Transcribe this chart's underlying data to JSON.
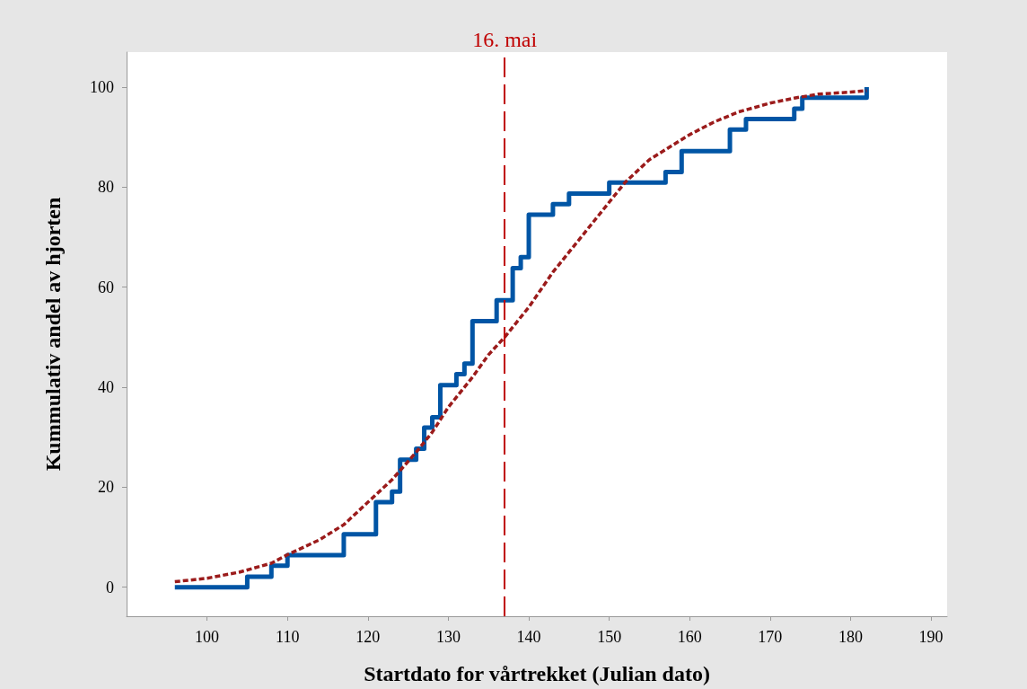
{
  "chart_data": {
    "type": "step",
    "xlabel": "Startdato for vårtrekket (Julian dato)",
    "ylabel": "Kummulativ andel av hjorten",
    "xlim": [
      90,
      192
    ],
    "xticks": [
      100,
      110,
      120,
      130,
      140,
      150,
      160,
      170,
      180,
      190
    ],
    "ylim": [
      -5.8,
      107
    ],
    "yticks": [
      0,
      20,
      40,
      60,
      80,
      100
    ],
    "grid": false,
    "marker": "none",
    "series": [
      {
        "color": "#0055a5",
        "line_style": "solid",
        "x": [
          96,
          105,
          108,
          110,
          117,
          121,
          123,
          124,
          126,
          127,
          128,
          129,
          131,
          132,
          133,
          136,
          138,
          139,
          140,
          143,
          145,
          150,
          157,
          159,
          165,
          167,
          173,
          174,
          182
        ],
        "values": [
          0,
          2.1,
          4.3,
          6.4,
          10.6,
          17,
          19.1,
          25.5,
          27.7,
          31.9,
          34,
          40.4,
          42.6,
          44.7,
          53.2,
          57.4,
          63.8,
          66,
          74.5,
          76.6,
          78.7,
          80.9,
          83,
          87.2,
          91.5,
          93.6,
          95.7,
          97.9,
          100
        ]
      },
      {
        "type": "line",
        "color": "#9b1b1b",
        "line_style": "dashed",
        "x": [
          96,
          100,
          104,
          108,
          110,
          114,
          117,
          120,
          123,
          126,
          128,
          130,
          133,
          135,
          137,
          140,
          143,
          145,
          148,
          150,
          152,
          155,
          157,
          160,
          163,
          166,
          170,
          173,
          176,
          180,
          182
        ],
        "values": [
          1.1,
          1.8,
          3,
          4.8,
          6.5,
          9.5,
          12.5,
          17,
          21.5,
          27,
          31,
          36,
          42,
          46.5,
          50,
          56,
          63,
          67,
          73,
          77,
          81,
          85.5,
          87.5,
          90.5,
          93,
          95,
          96.8,
          97.8,
          98.6,
          99,
          99.3
        ]
      }
    ],
    "ref_lines": [
      {
        "axis": "x",
        "value": 137,
        "label": "16. mai",
        "color": "#c00000",
        "line_style": "dashed"
      }
    ]
  }
}
